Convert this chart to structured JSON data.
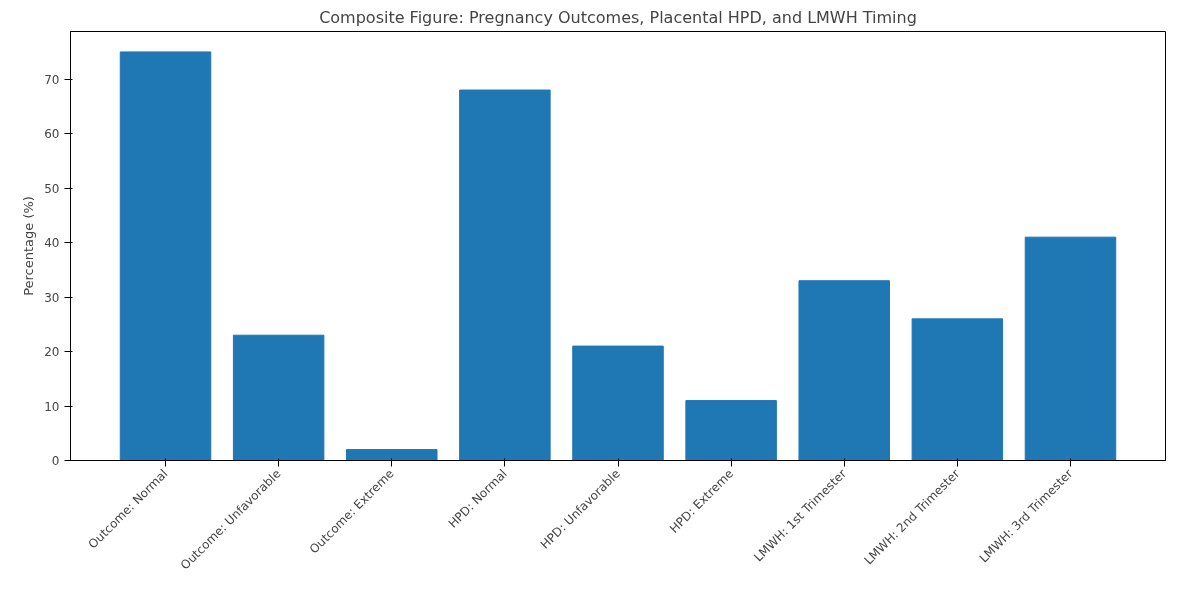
{
  "chart_data": {
    "type": "bar",
    "title": "Composite Figure: Pregnancy Outcomes, Placental HPD, and LMWH Timing",
    "ylabel": "Percentage (%)",
    "categories": [
      "Outcome: Normal",
      "Outcome: Unfavorable",
      "Outcome: Extreme",
      "HPD: Normal",
      "HPD: Unfavorable",
      "HPD: Extreme",
      "LMWH: 1st Trimester",
      "LMWH: 2nd Trimester",
      "LMWH: 3rd Trimester"
    ],
    "values": [
      75,
      23,
      2,
      68,
      21,
      11,
      33,
      26,
      41
    ],
    "color": "#1f77b4",
    "ylim": [
      0,
      78.75
    ],
    "yticks": [
      0,
      10,
      20,
      30,
      40,
      50,
      60,
      70
    ],
    "grid": false
  }
}
